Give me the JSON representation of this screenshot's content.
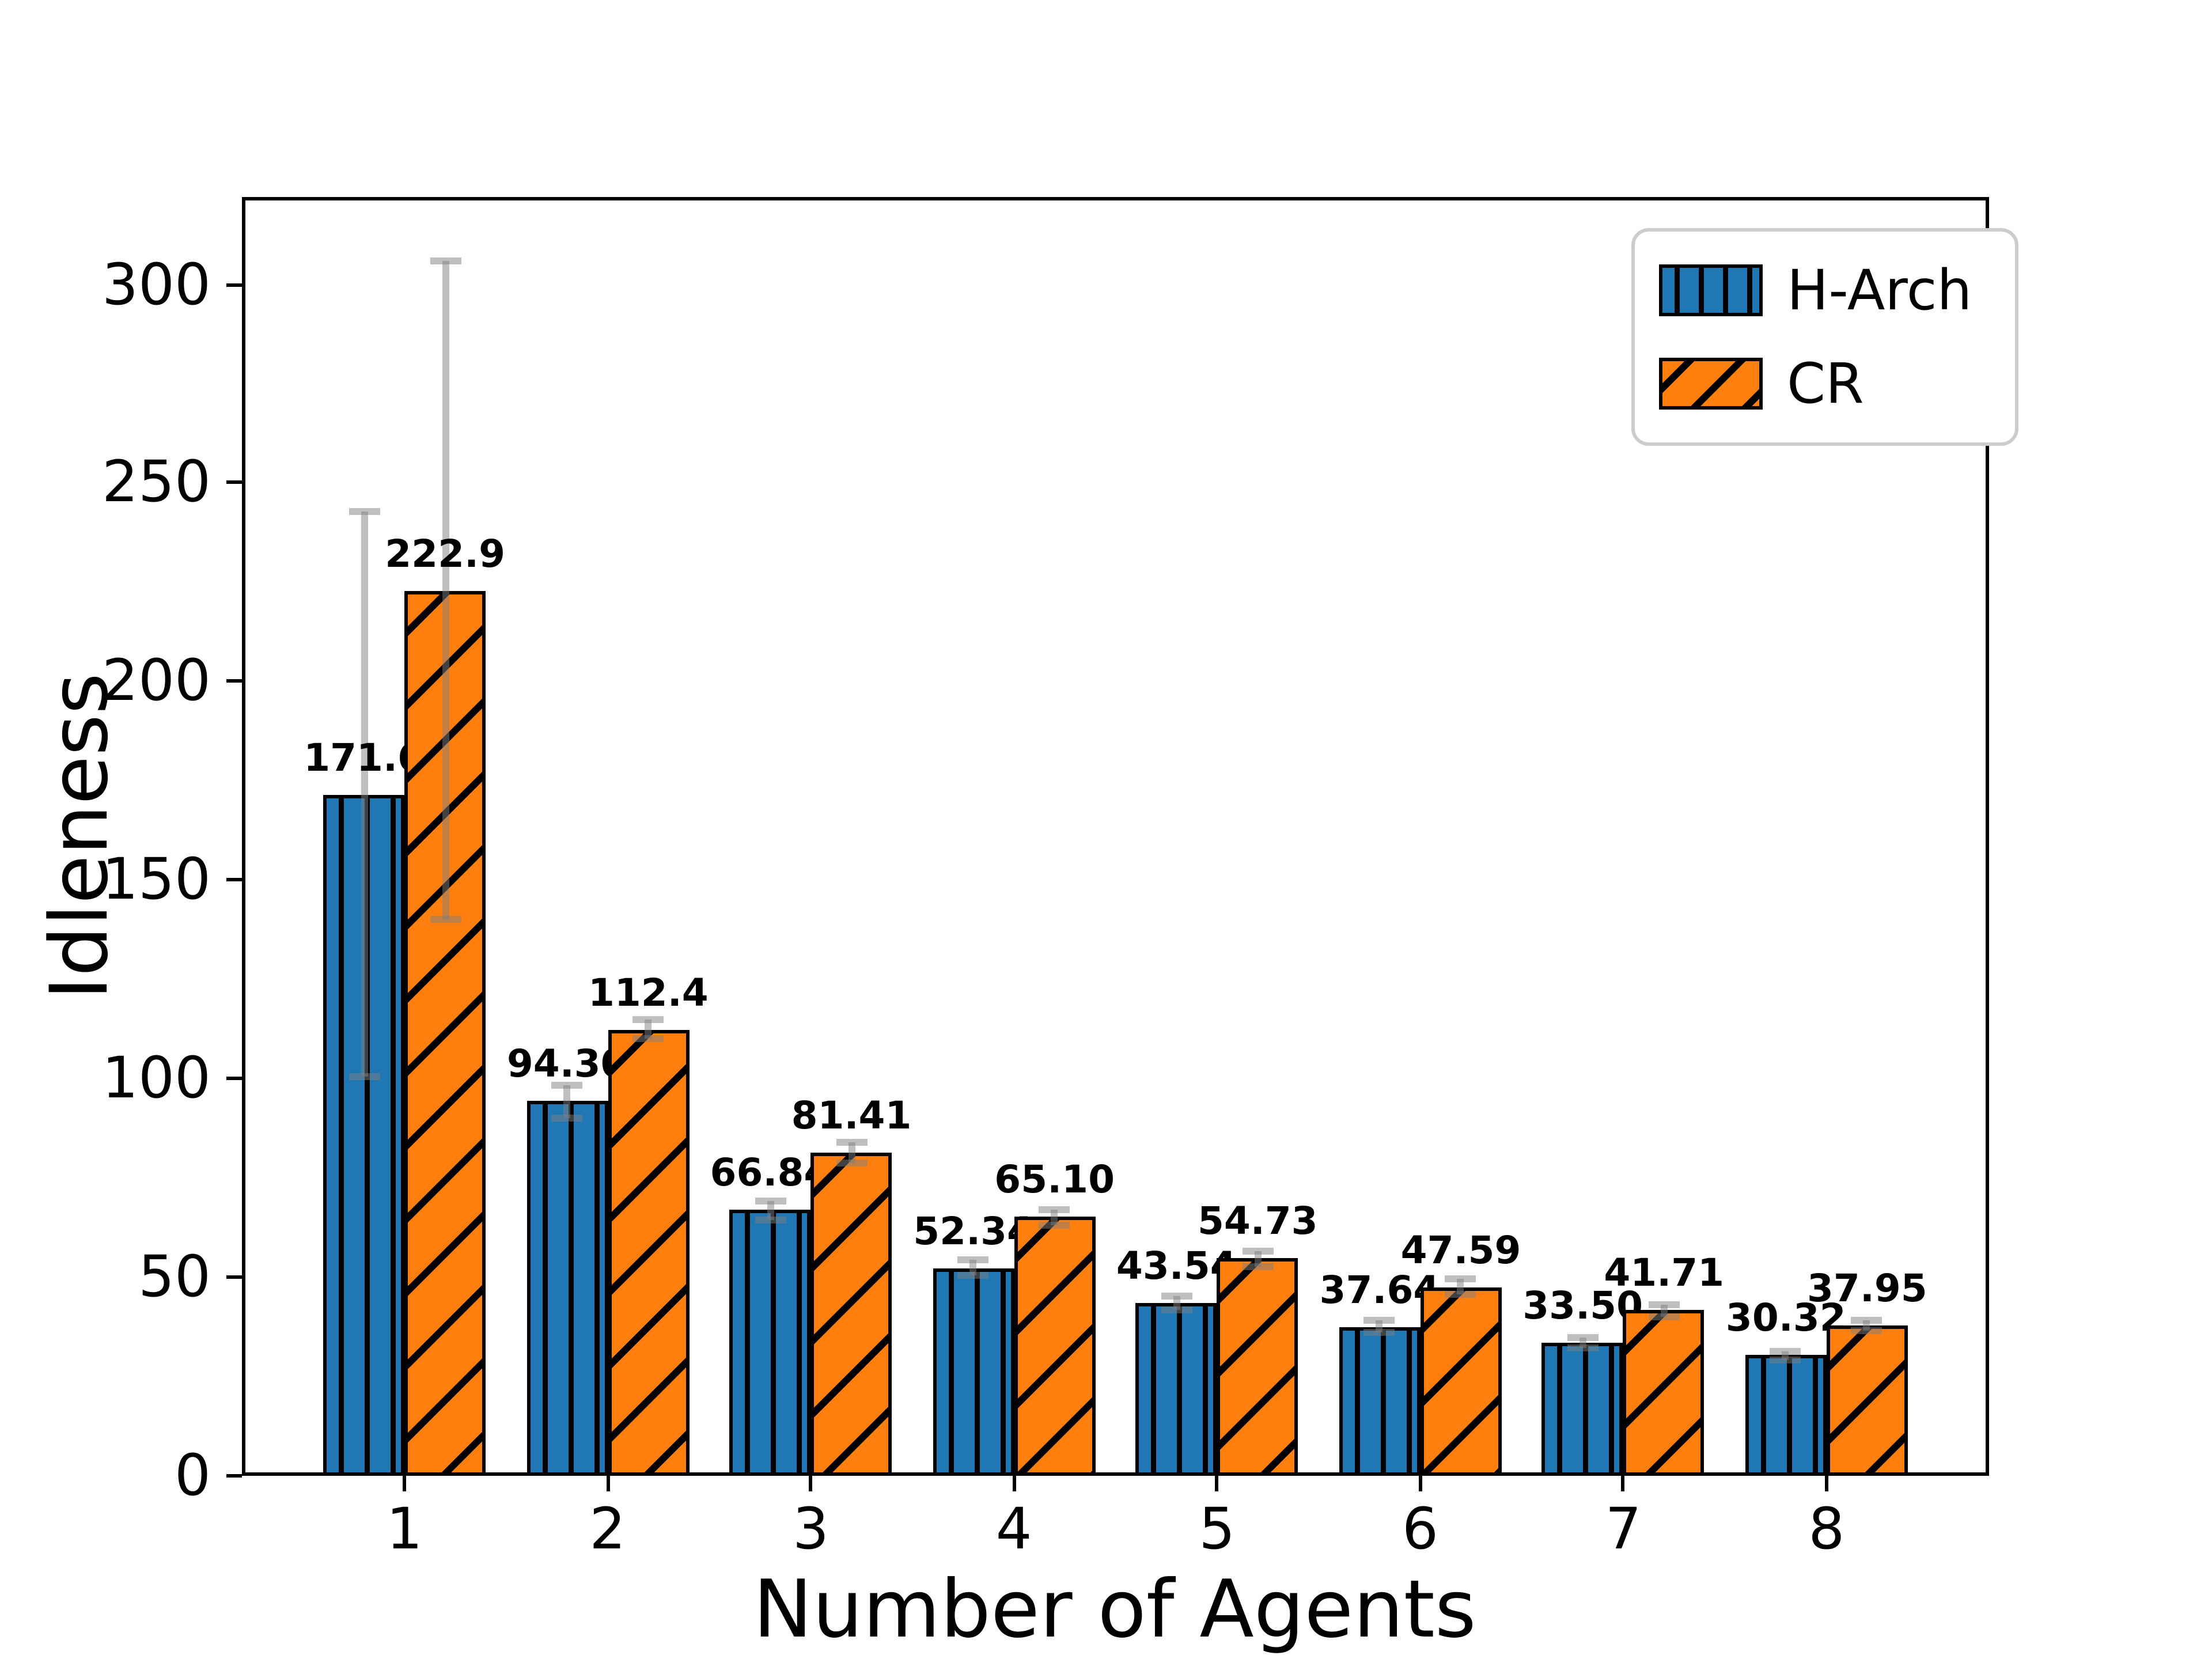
{
  "figure": {
    "background": "#ffffff"
  },
  "chart_data": {
    "type": "bar",
    "title": "",
    "xlabel": "Number of Agents",
    "ylabel": "Idleness",
    "categories": [
      "1",
      "2",
      "3",
      "4",
      "5",
      "6",
      "7",
      "8"
    ],
    "yticks": [
      0,
      50,
      100,
      150,
      200,
      250,
      300
    ],
    "ylim": [
      0,
      322
    ],
    "grid": false,
    "legend_position": "upper right",
    "bar_width_fraction": 0.4,
    "hatch_color": "#000000",
    "error_bar_color": "rgba(128,128,128,0.5)",
    "series": [
      {
        "name": "H-Arch",
        "color": "#1f77b4",
        "hatch": "|",
        "values": [
          171.6,
          94.3,
          66.84,
          52.34,
          43.54,
          37.64,
          33.5,
          30.32
        ],
        "labels": [
          "171.6",
          "94.30",
          "66.84",
          "52.34",
          "43.54",
          "37.64",
          "33.50",
          "30.32"
        ],
        "errors": [
          71,
          4.2,
          2.4,
          2.0,
          1.7,
          1.5,
          1.5,
          1.0
        ]
      },
      {
        "name": "CR",
        "color": "#ff7f0e",
        "hatch": "/",
        "values": [
          222.9,
          112.4,
          81.41,
          65.1,
          54.73,
          47.59,
          41.71,
          37.95
        ],
        "labels": [
          "222.9",
          "112.4",
          "81.41",
          "65.10",
          "54.73",
          "47.59",
          "41.71",
          "37.95"
        ],
        "errors": [
          83,
          2.3,
          2.5,
          2.1,
          2.0,
          1.9,
          1.5,
          1.3
        ]
      }
    ]
  }
}
